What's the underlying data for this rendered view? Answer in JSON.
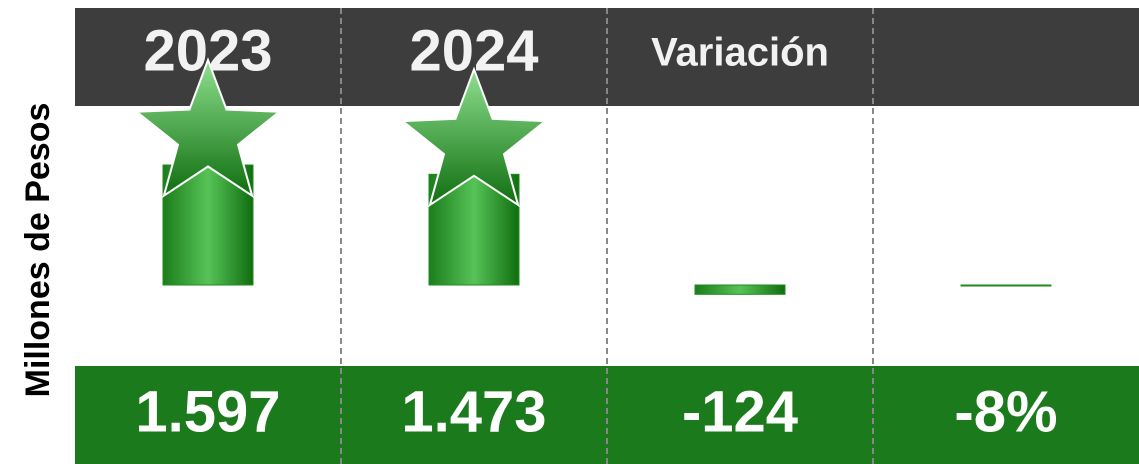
{
  "chart_data": {
    "type": "bar",
    "y_label": "Millones de Pesos",
    "categories": [
      "2023",
      "2024",
      "Variación",
      null
    ],
    "values": [
      1597,
      1473,
      -124,
      -8
    ],
    "value_labels": [
      "1.597",
      "1.473",
      "-124",
      "-8%"
    ],
    "color": "#1f8a1f"
  }
}
